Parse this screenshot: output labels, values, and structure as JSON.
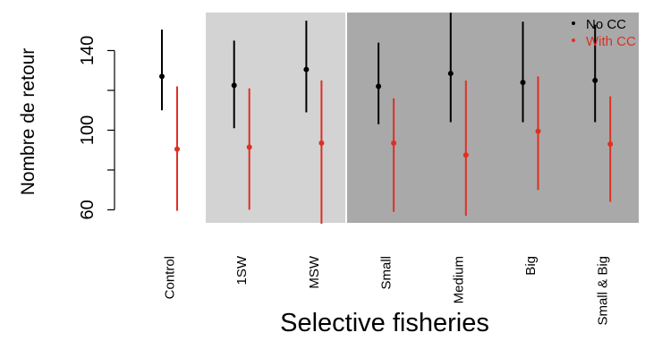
{
  "chart_data": {
    "type": "scatter",
    "subtype": "point-range",
    "title": "",
    "xlabel": "Selective fisheries",
    "ylabel": "Nombre de retour",
    "ylim": [
      53,
      160
    ],
    "yticks": [
      60,
      100,
      140
    ],
    "categories": [
      "Control",
      "1SW",
      "MSW",
      "Small",
      "Medium",
      "Big",
      "Small & Big"
    ],
    "shaded_groups": [
      {
        "from": "1SW",
        "to": "MSW",
        "color": "#d3d3d3"
      },
      {
        "from": "Small",
        "to": "Small & Big",
        "color": "#a9a9a9"
      }
    ],
    "series": [
      {
        "name": "No CC",
        "color": "#000000",
        "values": [
          127,
          122.5,
          130.5,
          122,
          128.5,
          124,
          125
        ],
        "lower": [
          110,
          101,
          109,
          103,
          104,
          104,
          104
        ],
        "upper": [
          150.5,
          145,
          155,
          144,
          159,
          154.5,
          153
        ]
      },
      {
        "name": "With CC",
        "color": "#df2f24",
        "values": [
          90.5,
          91.5,
          93.5,
          93.5,
          87.5,
          99.5,
          93
        ],
        "lower": [
          59.5,
          60,
          53,
          59,
          57,
          70,
          64
        ],
        "upper": [
          122,
          121,
          125,
          116,
          125,
          127,
          117
        ]
      }
    ],
    "legend": {
      "position": "top-right",
      "entries": [
        "No CC",
        "With CC"
      ]
    }
  }
}
